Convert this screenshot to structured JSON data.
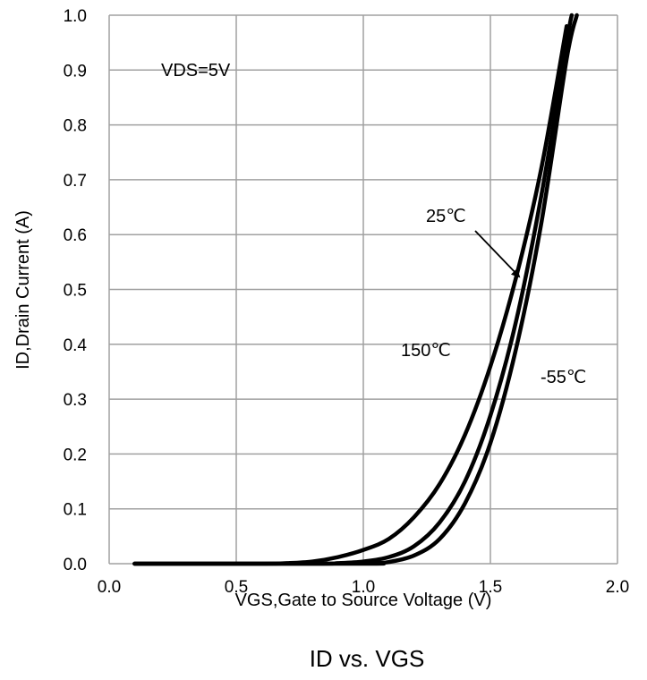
{
  "chart_data": {
    "type": "line",
    "title": "ID vs. VGS",
    "xlabel": "VGS,Gate to Source Voltage (V)",
    "ylabel": "ID,Drain Current (A)",
    "xlim": [
      0,
      2
    ],
    "ylim": [
      0,
      1
    ],
    "x_ticks": [
      "0.0",
      "0.5",
      "1.0",
      "1.5",
      "2.0"
    ],
    "y_ticks": [
      "0.0",
      "0.1",
      "0.2",
      "0.3",
      "0.4",
      "0.5",
      "0.6",
      "0.7",
      "0.8",
      "0.9",
      "1.0"
    ],
    "grid": true,
    "annotations": {
      "condition": "VDS=5V",
      "series_150": "150℃",
      "series_25": "25℃",
      "series_m55": "-55℃"
    },
    "series": [
      {
        "name": "150℃",
        "x": [
          0.1,
          0.6,
          0.7,
          0.8,
          0.9,
          1.0,
          1.1,
          1.2,
          1.3,
          1.4,
          1.5,
          1.6,
          1.7,
          1.8
        ],
        "y": [
          0.0,
          0.0,
          0.001,
          0.004,
          0.012,
          0.025,
          0.045,
          0.085,
          0.145,
          0.235,
          0.36,
          0.52,
          0.72,
          0.98
        ]
      },
      {
        "name": "25℃",
        "x": [
          0.1,
          0.8,
          0.9,
          1.0,
          1.1,
          1.2,
          1.3,
          1.4,
          1.5,
          1.6,
          1.7,
          1.8,
          1.82
        ],
        "y": [
          0.0,
          0.0,
          0.001,
          0.004,
          0.012,
          0.032,
          0.075,
          0.15,
          0.27,
          0.44,
          0.67,
          0.95,
          1.0
        ]
      },
      {
        "name": "-55℃",
        "x": [
          0.1,
          1.0,
          1.05,
          1.1,
          1.2,
          1.3,
          1.4,
          1.5,
          1.6,
          1.7,
          1.8,
          1.84
        ],
        "y": [
          0.0,
          0.0,
          0.001,
          0.003,
          0.015,
          0.045,
          0.11,
          0.22,
          0.39,
          0.62,
          0.92,
          1.0
        ]
      }
    ]
  }
}
